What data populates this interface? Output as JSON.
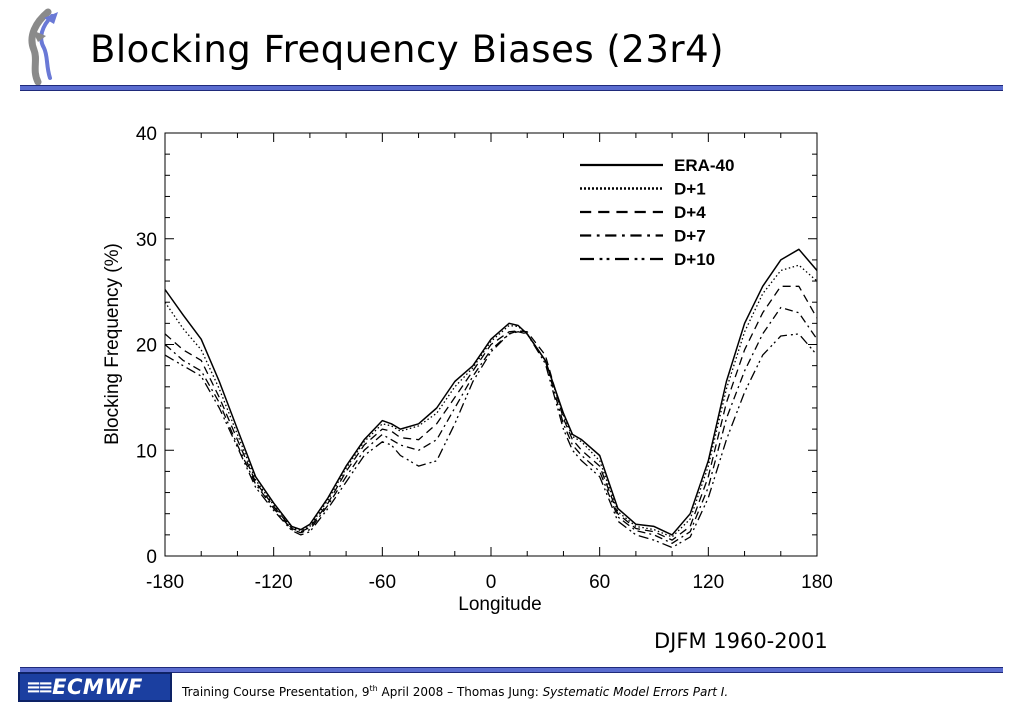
{
  "slide": {
    "title": "Blocking Frequency Biases (23r4)",
    "period_label": "DJFM 1960-2001",
    "logo_text": "ECMWF",
    "footer": {
      "prefix": "Training Course Presentation, 9",
      "superscript": "th",
      "middle": " April 2008 – Thomas Jung: ",
      "italic": "Systematic Model Errors Part I."
    },
    "colors": {
      "accent": "#5a6ccf",
      "logo_bg": "#1b3fa0"
    }
  },
  "chart_data": {
    "type": "line",
    "xlabel": "Longitude",
    "ylabel": "Blocking Frequency (%)",
    "xlim": [
      -180,
      180
    ],
    "ylim": [
      0,
      40
    ],
    "xticks": [
      -180,
      -120,
      -60,
      0,
      60,
      120,
      180
    ],
    "yticks": [
      0,
      10,
      20,
      30,
      40
    ],
    "grid": false,
    "legend_position": "top-right",
    "x": [
      -180,
      -170,
      -160,
      -150,
      -140,
      -130,
      -120,
      -110,
      -105,
      -100,
      -90,
      -80,
      -70,
      -60,
      -55,
      -50,
      -40,
      -30,
      -20,
      -10,
      0,
      10,
      15,
      20,
      30,
      40,
      45,
      50,
      60,
      70,
      80,
      90,
      100,
      110,
      120,
      130,
      140,
      150,
      160,
      170,
      180
    ],
    "series": [
      {
        "name": "ERA-40",
        "dash": "solid",
        "values": [
          25.2,
          22.8,
          20.5,
          16.5,
          12.0,
          7.5,
          5.0,
          2.8,
          2.5,
          3.0,
          5.5,
          8.5,
          11.0,
          12.8,
          12.5,
          12.0,
          12.5,
          14.0,
          16.5,
          18.0,
          20.5,
          22.0,
          21.8,
          21.0,
          18.5,
          13.5,
          11.5,
          11.0,
          9.5,
          4.5,
          3.0,
          2.8,
          2.0,
          4.0,
          9.0,
          16.5,
          22.0,
          25.5,
          28.0,
          29.0,
          27.0
        ]
      },
      {
        "name": "D+1",
        "dash": "dotted",
        "values": [
          24.0,
          21.5,
          19.5,
          15.8,
          11.5,
          7.2,
          4.8,
          2.7,
          2.4,
          2.8,
          5.3,
          8.3,
          10.8,
          12.5,
          12.3,
          11.8,
          12.3,
          13.5,
          16.0,
          17.8,
          20.3,
          21.8,
          21.7,
          21.0,
          18.5,
          13.3,
          11.3,
          10.8,
          9.0,
          4.2,
          2.8,
          2.5,
          1.8,
          3.5,
          8.5,
          15.8,
          21.2,
          24.8,
          27.0,
          27.5,
          26.0
        ]
      },
      {
        "name": "D+4",
        "dash": "dashed",
        "values": [
          21.0,
          19.5,
          18.5,
          15.0,
          11.0,
          7.0,
          4.7,
          2.6,
          2.3,
          2.7,
          5.0,
          8.0,
          10.5,
          12.0,
          11.8,
          11.2,
          11.0,
          12.5,
          15.0,
          17.5,
          20.0,
          21.2,
          21.3,
          21.2,
          19.0,
          13.0,
          11.0,
          10.0,
          8.5,
          4.0,
          2.6,
          2.3,
          1.5,
          2.8,
          7.5,
          14.5,
          19.5,
          23.0,
          25.5,
          25.5,
          22.5
        ]
      },
      {
        "name": "D+7",
        "dash": "dashdot",
        "values": [
          20.0,
          18.5,
          17.5,
          14.5,
          10.5,
          6.8,
          4.5,
          2.5,
          2.2,
          2.5,
          4.8,
          7.5,
          10.0,
          11.5,
          11.0,
          10.5,
          10.0,
          11.0,
          14.0,
          17.0,
          19.5,
          21.0,
          21.3,
          21.0,
          18.5,
          12.5,
          10.5,
          9.5,
          8.0,
          3.7,
          2.4,
          2.0,
          1.2,
          2.3,
          6.5,
          13.0,
          17.5,
          21.0,
          23.5,
          23.0,
          20.5
        ]
      },
      {
        "name": "D+10",
        "dash": "dashdotdot",
        "values": [
          19.0,
          18.0,
          17.0,
          14.0,
          10.3,
          6.5,
          4.3,
          2.4,
          2.0,
          2.3,
          4.5,
          7.0,
          9.5,
          10.8,
          10.5,
          9.5,
          8.5,
          9.0,
          12.5,
          16.5,
          19.3,
          21.0,
          21.2,
          21.0,
          18.2,
          12.0,
          10.0,
          9.0,
          7.5,
          3.3,
          2.0,
          1.5,
          0.8,
          1.8,
          5.5,
          11.0,
          15.5,
          19.0,
          20.8,
          21.0,
          19.0
        ]
      }
    ]
  }
}
